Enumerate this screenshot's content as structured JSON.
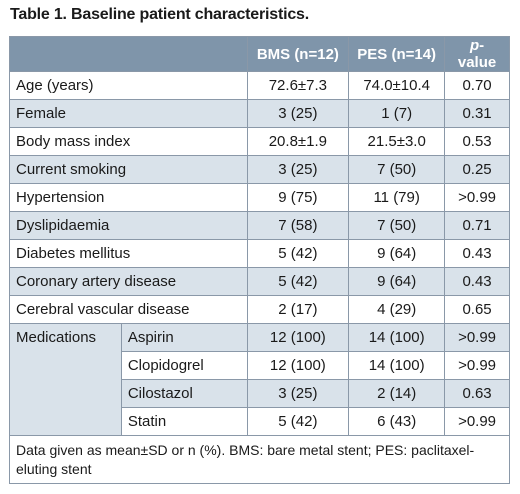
{
  "caption": "Table 1. Baseline patient characteristics.",
  "headers": {
    "col1": "BMS (n=12)",
    "col2": "PES (n=14)",
    "col3_italic": "p",
    "col3_rest": "-value"
  },
  "rows": [
    {
      "label": "Age (years)",
      "bms": "72.6±7.3",
      "pes": "74.0±10.4",
      "p": "0.70"
    },
    {
      "label": "Female",
      "bms": "3 (25)",
      "pes": "1 (7)",
      "p": "0.31"
    },
    {
      "label": "Body mass index",
      "bms": "20.8±1.9",
      "pes": "21.5±3.0",
      "p": "0.53"
    },
    {
      "label": "Current smoking",
      "bms": "3 (25)",
      "pes": "7 (50)",
      "p": "0.25"
    },
    {
      "label": "Hypertension",
      "bms": "9 (75)",
      "pes": "11 (79)",
      "p": ">0.99"
    },
    {
      "label": "Dyslipidaemia",
      "bms": "7 (58)",
      "pes": "7 (50)",
      "p": "0.71"
    },
    {
      "label": "Diabetes mellitus",
      "bms": "5 (42)",
      "pes": "9 (64)",
      "p": "0.43"
    },
    {
      "label": "Coronary artery disease",
      "bms": "5 (42)",
      "pes": "9 (64)",
      "p": "0.43"
    },
    {
      "label": "Cerebral vascular disease",
      "bms": "2 (17)",
      "pes": "4 (29)",
      "p": "0.65"
    }
  ],
  "medications": {
    "label": "Medications",
    "items": [
      {
        "label": "Aspirin",
        "bms": "12 (100)",
        "pes": "14 (100)",
        "p": ">0.99"
      },
      {
        "label": "Clopidogrel",
        "bms": "12 (100)",
        "pes": "14 (100)",
        "p": ">0.99"
      },
      {
        "label": "Cilostazol",
        "bms": "3 (25)",
        "pes": "2 (14)",
        "p": "0.63"
      },
      {
        "label": "Statin",
        "bms": "5 (42)",
        "pes": "6 (43)",
        "p": ">0.99"
      }
    ]
  },
  "footnote": "Data given as mean±SD or n (%). BMS: bare metal stent; PES: paclitaxel-eluting stent",
  "colors": {
    "header_bg": "#7f95aa",
    "band_bg": "#d9e2ea",
    "border": "#8a98a8"
  }
}
